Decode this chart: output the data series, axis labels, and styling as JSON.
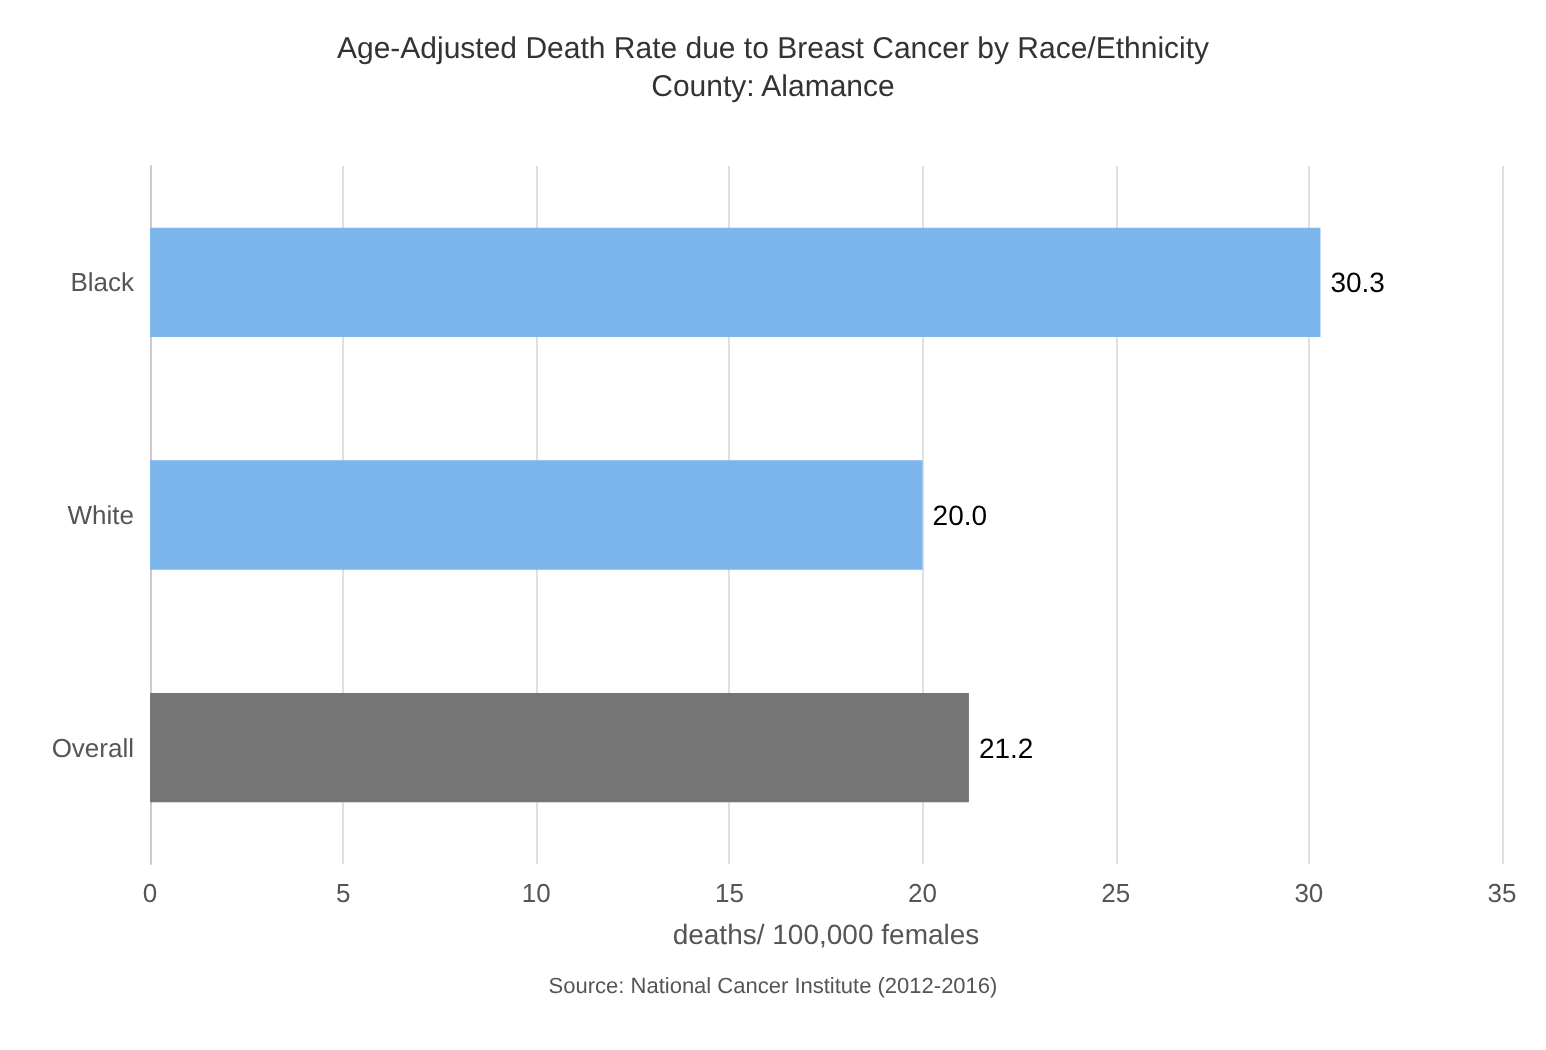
{
  "chart_data": {
    "type": "bar",
    "orientation": "horizontal",
    "title": "Age-Adjusted Death Rate due to Breast Cancer by Race/Ethnicity",
    "subtitle": "County: Alamance",
    "xlabel": "deaths/ 100,000 females",
    "annotations": [
      "Source: National Cancer Institute (2012-2016)"
    ],
    "categories": [
      "Black",
      "White",
      "Overall"
    ],
    "values": [
      30.3,
      20.0,
      21.2
    ],
    "colors": [
      "#7cb5ec",
      "#7cb5ec",
      "#757575"
    ],
    "value_labels": [
      "30.3",
      "20.0",
      "21.2"
    ],
    "xlim": [
      0,
      35
    ],
    "xticks": [
      0,
      5,
      10,
      15,
      20,
      25,
      30,
      35
    ],
    "grid": "x"
  }
}
